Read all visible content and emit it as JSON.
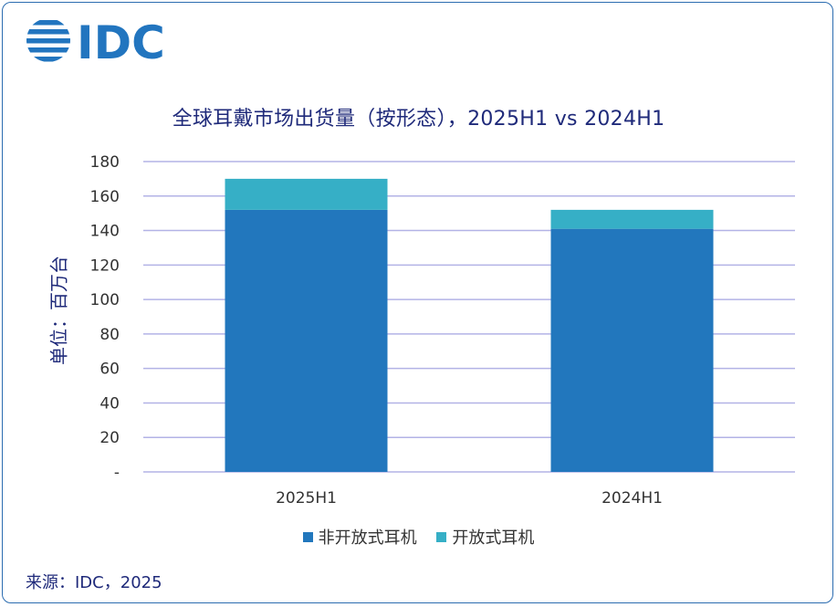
{
  "brand": {
    "logo_text": "IDC",
    "color": "#2275bf"
  },
  "chart_data": {
    "type": "bar",
    "stacked": true,
    "title": "全球耳戴市场出货量（按形态），2025H1 vs 2024H1",
    "ylabel": "单位：百万台",
    "categories": [
      "2025H1",
      "2024H1"
    ],
    "series": [
      {
        "name": "非开放式耳机",
        "values": [
          152,
          141
        ],
        "color": "#2277bd"
      },
      {
        "name": "开放式耳机",
        "values": [
          18,
          11
        ],
        "color": "#36afc6"
      }
    ],
    "ylim": [
      0,
      180
    ],
    "yticks": [
      {
        "value": 0,
        "label": "-"
      },
      {
        "value": 20,
        "label": "20"
      },
      {
        "value": 40,
        "label": "40"
      },
      {
        "value": 60,
        "label": "60"
      },
      {
        "value": 80,
        "label": "80"
      },
      {
        "value": 100,
        "label": "100"
      },
      {
        "value": 120,
        "label": "120"
      },
      {
        "value": 140,
        "label": "140"
      },
      {
        "value": 160,
        "label": "160"
      },
      {
        "value": 180,
        "label": "180"
      }
    ],
    "grid": true,
    "gridline_color": "#b3b3e6",
    "legend_position": "bottom"
  },
  "source": "来源：IDC，2025"
}
